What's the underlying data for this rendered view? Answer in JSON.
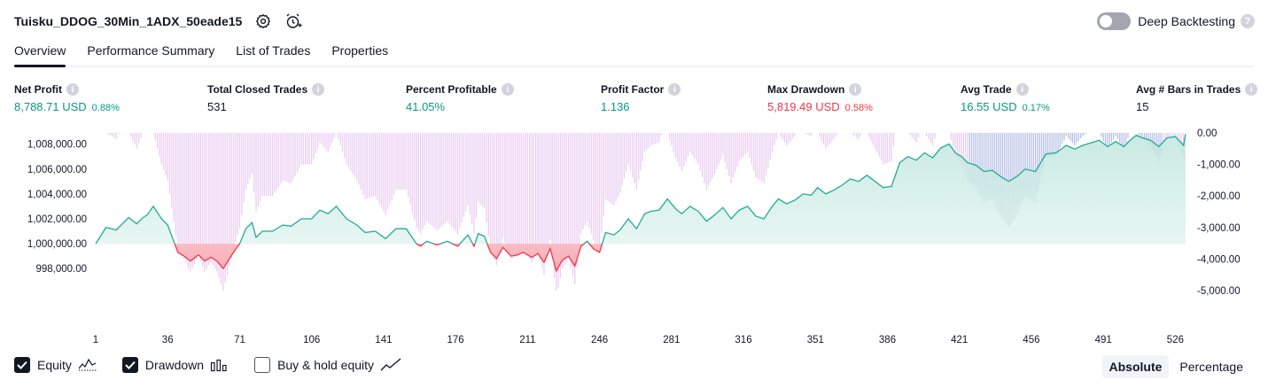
{
  "header": {
    "strategy_name": "Tuisku_DDOG_30Min_1ADX_50eade15",
    "settings_icon": "gear-icon",
    "alert_icon": "add-alert-icon"
  },
  "deep_backtesting": {
    "label": "Deep Backtesting",
    "enabled": false,
    "help": "?"
  },
  "tabs": [
    {
      "label": "Overview",
      "active": true
    },
    {
      "label": "Performance Summary",
      "active": false
    },
    {
      "label": "List of Trades",
      "active": false
    },
    {
      "label": "Properties",
      "active": false
    }
  ],
  "stats": [
    {
      "label": "Net Profit",
      "value": "8,788.71 USD",
      "percent": "0.88%",
      "tone": "green"
    },
    {
      "label": "Total Closed Trades",
      "value": "531",
      "percent": "",
      "tone": "dark"
    },
    {
      "label": "Percent Profitable",
      "value": "41.05%",
      "percent": "",
      "tone": "green"
    },
    {
      "label": "Profit Factor",
      "value": "1.136",
      "percent": "",
      "tone": "green"
    },
    {
      "label": "Max Drawdown",
      "value": "5,819.49 USD",
      "percent": "0.58%",
      "tone": "red"
    },
    {
      "label": "Avg Trade",
      "value": "16.55 USD",
      "percent": "0.17%",
      "tone": "green"
    },
    {
      "label": "Avg # Bars in Trades",
      "value": "15",
      "percent": "",
      "tone": "dark"
    }
  ],
  "chart_data": {
    "type": "area",
    "equity_axis": {
      "ticks": [
        "1,008,000.00",
        "1,006,000.00",
        "1,004,000.00",
        "1,002,000.00",
        "1,000,000.00",
        "998,000.00"
      ],
      "tick_values": [
        1008000,
        1006000,
        1004000,
        1002000,
        1000000,
        998000
      ],
      "range": [
        997300,
        1008900
      ],
      "baseline": 1000000
    },
    "drawdown_axis": {
      "ticks": [
        "0.00",
        "-1,000.00",
        "-2,000.00",
        "-3,000.00",
        "-4,000.00",
        "-5,000.00"
      ],
      "tick_values": [
        0,
        -1000,
        -2000,
        -3000,
        -4000,
        -5000
      ],
      "range": [
        -5000,
        0
      ]
    },
    "x_ticks": [
      "1",
      "36",
      "71",
      "106",
      "141",
      "176",
      "211",
      "246",
      "281",
      "316",
      "351",
      "386",
      "421",
      "456",
      "491",
      "526"
    ],
    "x_range": [
      1,
      531
    ],
    "equity_series": [
      [
        1,
        1000000
      ],
      [
        6,
        1001300
      ],
      [
        11,
        1001100
      ],
      [
        17,
        1002100
      ],
      [
        21,
        1001600
      ],
      [
        24,
        1002100
      ],
      [
        26,
        1002300
      ],
      [
        29,
        1003000
      ],
      [
        33,
        1002000
      ],
      [
        36,
        1001500
      ],
      [
        41,
        999300
      ],
      [
        44,
        999000
      ],
      [
        47,
        998600
      ],
      [
        51,
        999100
      ],
      [
        54,
        998600
      ],
      [
        57,
        998900
      ],
      [
        60,
        998600
      ],
      [
        63,
        998000
      ],
      [
        65,
        998500
      ],
      [
        68,
        999300
      ],
      [
        71,
        1000000
      ],
      [
        74,
        1001200
      ],
      [
        77,
        1001700
      ],
      [
        79,
        1000500
      ],
      [
        82,
        1001000
      ],
      [
        87,
        1001000
      ],
      [
        92,
        1001500
      ],
      [
        96,
        1001400
      ],
      [
        101,
        1002000
      ],
      [
        106,
        1002000
      ],
      [
        110,
        1002700
      ],
      [
        114,
        1002400
      ],
      [
        118,
        1003000
      ],
      [
        123,
        1002000
      ],
      [
        128,
        1001500
      ],
      [
        132,
        1000900
      ],
      [
        137,
        1001000
      ],
      [
        142,
        1000400
      ],
      [
        147,
        1001200
      ],
      [
        152,
        1001200
      ],
      [
        157,
        1000000
      ],
      [
        159,
        999800
      ],
      [
        162,
        1000200
      ],
      [
        167,
        999900
      ],
      [
        172,
        1000200
      ],
      [
        177,
        999800
      ],
      [
        182,
        1000700
      ],
      [
        185,
        999800
      ],
      [
        187,
        1000800
      ],
      [
        190,
        1000600
      ],
      [
        193,
        999300
      ],
      [
        196,
        998800
      ],
      [
        199,
        999700
      ],
      [
        203,
        999000
      ],
      [
        206,
        999100
      ],
      [
        209,
        999300
      ],
      [
        213,
        998900
      ],
      [
        216,
        999200
      ],
      [
        219,
        998500
      ],
      [
        222,
        999600
      ],
      [
        225,
        997800
      ],
      [
        228,
        998700
      ],
      [
        231,
        999000
      ],
      [
        234,
        998200
      ],
      [
        237,
        999800
      ],
      [
        240,
        1000200
      ],
      [
        243,
        999600
      ],
      [
        246,
        999300
      ],
      [
        249,
        1000900
      ],
      [
        253,
        1000700
      ],
      [
        256,
        1001100
      ],
      [
        260,
        1002000
      ],
      [
        264,
        1001200
      ],
      [
        268,
        1002400
      ],
      [
        271,
        1002600
      ],
      [
        275,
        1002700
      ],
      [
        279,
        1003600
      ],
      [
        283,
        1002800
      ],
      [
        286,
        1002400
      ],
      [
        290,
        1003000
      ],
      [
        294,
        1002600
      ],
      [
        298,
        1001800
      ],
      [
        302,
        1002300
      ],
      [
        306,
        1002900
      ],
      [
        310,
        1002000
      ],
      [
        314,
        1002700
      ],
      [
        318,
        1003000
      ],
      [
        322,
        1002200
      ],
      [
        326,
        1002000
      ],
      [
        330,
        1003000
      ],
      [
        333,
        1003600
      ],
      [
        337,
        1003200
      ],
      [
        341,
        1003500
      ],
      [
        345,
        1004000
      ],
      [
        349,
        1003900
      ],
      [
        352,
        1004500
      ],
      [
        356,
        1004000
      ],
      [
        360,
        1004300
      ],
      [
        364,
        1004700
      ],
      [
        368,
        1005200
      ],
      [
        372,
        1005000
      ],
      [
        376,
        1005500
      ],
      [
        380,
        1005000
      ],
      [
        384,
        1004500
      ],
      [
        388,
        1004600
      ],
      [
        392,
        1006500
      ],
      [
        396,
        1007000
      ],
      [
        400,
        1006700
      ],
      [
        404,
        1007300
      ],
      [
        408,
        1006900
      ],
      [
        412,
        1007700
      ],
      [
        416,
        1008000
      ],
      [
        419,
        1007300
      ],
      [
        422,
        1007000
      ],
      [
        425,
        1006500
      ],
      [
        429,
        1006300
      ],
      [
        433,
        1005800
      ],
      [
        437,
        1005900
      ],
      [
        441,
        1005400
      ],
      [
        445,
        1005000
      ],
      [
        449,
        1005400
      ],
      [
        453,
        1006000
      ],
      [
        458,
        1005800
      ],
      [
        463,
        1007200
      ],
      [
        468,
        1007300
      ],
      [
        473,
        1007900
      ],
      [
        477,
        1007600
      ],
      [
        481,
        1007900
      ],
      [
        485,
        1008100
      ],
      [
        489,
        1008300
      ],
      [
        493,
        1007800
      ],
      [
        497,
        1008200
      ],
      [
        501,
        1007800
      ],
      [
        504,
        1008300
      ],
      [
        507,
        1008700
      ],
      [
        510,
        1008500
      ],
      [
        514,
        1008300
      ],
      [
        518,
        1007800
      ],
      [
        522,
        1008500
      ],
      [
        526,
        1008600
      ],
      [
        530,
        1007900
      ],
      [
        531,
        1008800
      ]
    ]
  },
  "legend": [
    {
      "label": "Equity",
      "checked": true,
      "icon": "equity-line-icon"
    },
    {
      "label": "Drawdown",
      "checked": true,
      "icon": "drawdown-bars-icon"
    },
    {
      "label": "Buy & hold equity",
      "checked": false,
      "icon": "buy-hold-line-icon"
    }
  ],
  "view_mode": {
    "options": [
      "Absolute",
      "Percentage"
    ],
    "selected": "Absolute"
  },
  "colors": {
    "equity_line": "#22ab94",
    "equity_negative_line": "#f23645",
    "equity_fill": "#d9f1ec",
    "negative_fill": "#fcd1d5",
    "drawdown_bars": "#e8c6f0",
    "drawdown_deep": "#a9b4e0"
  }
}
